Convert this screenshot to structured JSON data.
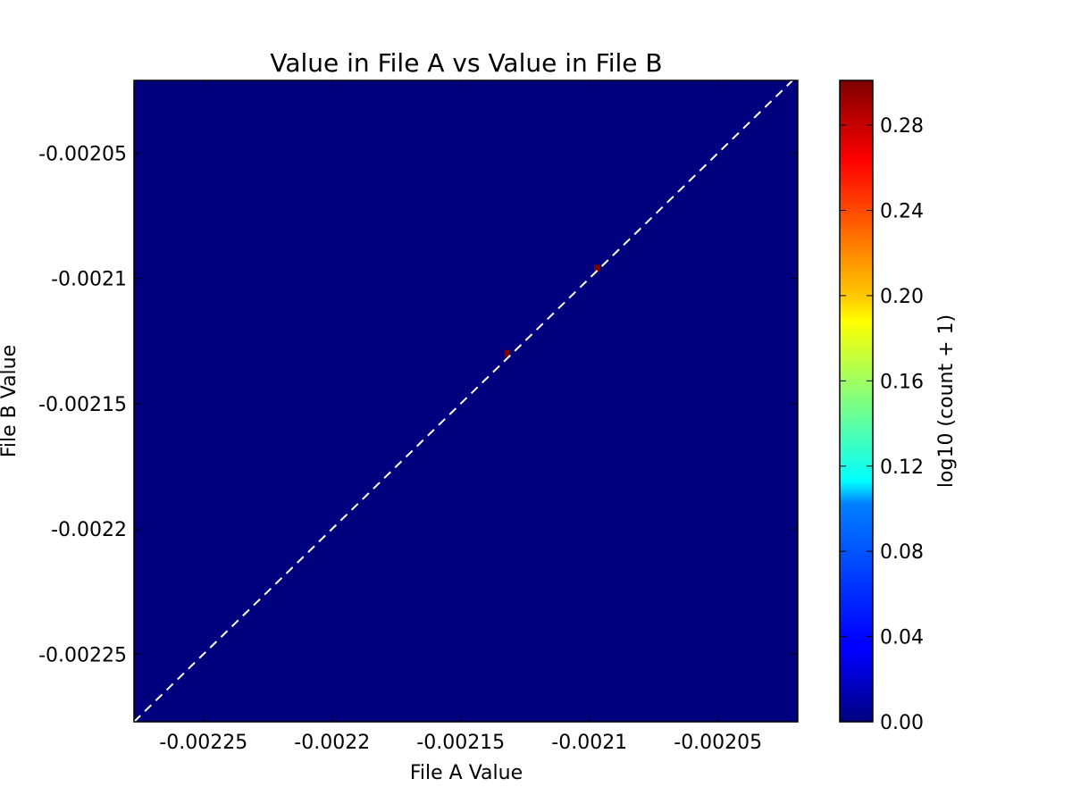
{
  "chart_data": {
    "type": "heatmap",
    "title": "Value in File A vs Value in File B",
    "xlabel": "File A Value",
    "ylabel": "File B Value",
    "xlim": [
      -0.002277,
      -0.002019
    ],
    "ylim": [
      -0.002277,
      -0.002021
    ],
    "xticks": [
      {
        "value": -0.00225,
        "label": "-0.00225"
      },
      {
        "value": -0.0022,
        "label": "-0.0022"
      },
      {
        "value": -0.00215,
        "label": "-0.00215"
      },
      {
        "value": -0.0021,
        "label": "-0.0021"
      },
      {
        "value": -0.00205,
        "label": "-0.00205"
      }
    ],
    "yticks": [
      {
        "value": -0.00225,
        "label": "-0.00225"
      },
      {
        "value": -0.0022,
        "label": "-0.0022"
      },
      {
        "value": -0.00215,
        "label": "-0.00215"
      },
      {
        "value": -0.0021,
        "label": "-0.0021"
      },
      {
        "value": -0.00205,
        "label": "-0.00205"
      }
    ],
    "background_value": 0.0,
    "cells": [
      {
        "x": -0.002132,
        "y": -0.00213,
        "value": 0.301
      },
      {
        "x": -0.002097,
        "y": -0.002096,
        "value": 0.301
      }
    ],
    "reference_line": {
      "style": "dashed",
      "color": "#ffffff",
      "description": "y = x"
    },
    "colorbar": {
      "label": "log10 (count + 1)",
      "range": [
        0.0,
        0.301
      ],
      "colormap": "jet",
      "ticks": [
        {
          "value": 0.0,
          "label": "0.00"
        },
        {
          "value": 0.04,
          "label": "0.04"
        },
        {
          "value": 0.08,
          "label": "0.08"
        },
        {
          "value": 0.12,
          "label": "0.12"
        },
        {
          "value": 0.16,
          "label": "0.16"
        },
        {
          "value": 0.2,
          "label": "0.20"
        },
        {
          "value": 0.24,
          "label": "0.24"
        },
        {
          "value": 0.28,
          "label": "0.28"
        }
      ]
    },
    "grid": false,
    "colors": {
      "low": "#00007f",
      "high": "#7f0000",
      "line": "#ffffff"
    }
  }
}
